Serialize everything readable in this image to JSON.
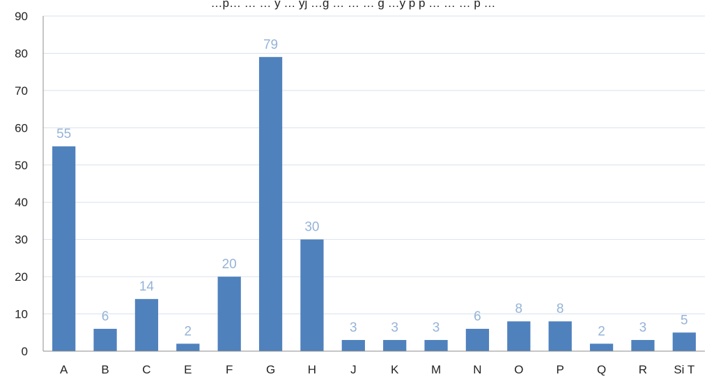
{
  "top_text": "…p… … … y … yj …g … … … g …y p p … … … p …",
  "chart_data": {
    "type": "bar",
    "title": "",
    "xlabel": "",
    "ylabel": "",
    "categories": [
      "A",
      "B",
      "C",
      "E",
      "F",
      "G",
      "H",
      "J",
      "K",
      "M",
      "N",
      "O",
      "P",
      "Q",
      "R",
      "Si T"
    ],
    "values": [
      55,
      6,
      14,
      2,
      20,
      79,
      30,
      3,
      3,
      3,
      6,
      8,
      8,
      2,
      3,
      5
    ],
    "ylim": [
      0,
      90
    ],
    "yticks": [
      0,
      10,
      20,
      30,
      40,
      50,
      60,
      70,
      80,
      90
    ],
    "grid": true,
    "legend": "none",
    "data_labels": true,
    "bar_color": "#4f81bd",
    "label_color": "#95b3d7",
    "gridline_color": "#d9e1ee",
    "axis_color": "#8c8c8c"
  }
}
